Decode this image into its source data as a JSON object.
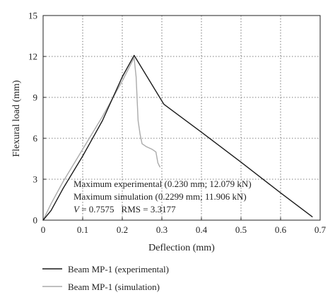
{
  "chart_data": {
    "type": "line",
    "xlabel": "Deflection (mm)",
    "ylabel": "Flexural load (mm)",
    "xlim": [
      0,
      0.7
    ],
    "ylim": [
      0,
      15
    ],
    "xticks": [
      "0",
      "0.1",
      "0.2",
      "0.3",
      "0.4",
      "0.5",
      "0.6",
      "0.7"
    ],
    "yticks": [
      "0",
      "3",
      "6",
      "9",
      "12",
      "15"
    ],
    "grid": true,
    "grid_style": "dotted",
    "legend_position": "bottom",
    "series": [
      {
        "name": "Beam MP-1 (experimental)",
        "color": "#1a1a1a",
        "x": [
          0,
          0.02,
          0.05,
          0.1,
          0.15,
          0.2,
          0.23,
          0.305,
          0.4,
          0.5,
          0.6,
          0.68
        ],
        "y": [
          0,
          0.7,
          2.3,
          4.7,
          7.3,
          10.5,
          12.079,
          8.5,
          6.45,
          4.25,
          2.0,
          0.25
        ]
      },
      {
        "name": "Beam MP-1 (simulation)",
        "color": "#aaaaaa",
        "x": [
          0,
          0.02,
          0.05,
          0.1,
          0.15,
          0.2,
          0.2299,
          0.235,
          0.24,
          0.245,
          0.25,
          0.26,
          0.275,
          0.285,
          0.29,
          0.295
        ],
        "y": [
          0,
          1.2,
          2.8,
          5.2,
          7.6,
          10.2,
          11.906,
          10.5,
          7.3,
          6.3,
          5.6,
          5.4,
          5.2,
          5.0,
          4.2,
          3.9
        ]
      }
    ],
    "annotations": [
      "Maximum experimental (0.230 mm; 12.079 kN)",
      "Maximum simulation (0.2299 mm; 11.906 kN)"
    ],
    "annotation_metrics": {
      "v_symbol": "V",
      "v_rest": " = 0.7575",
      "rms": "RMS = 3.3177"
    }
  }
}
